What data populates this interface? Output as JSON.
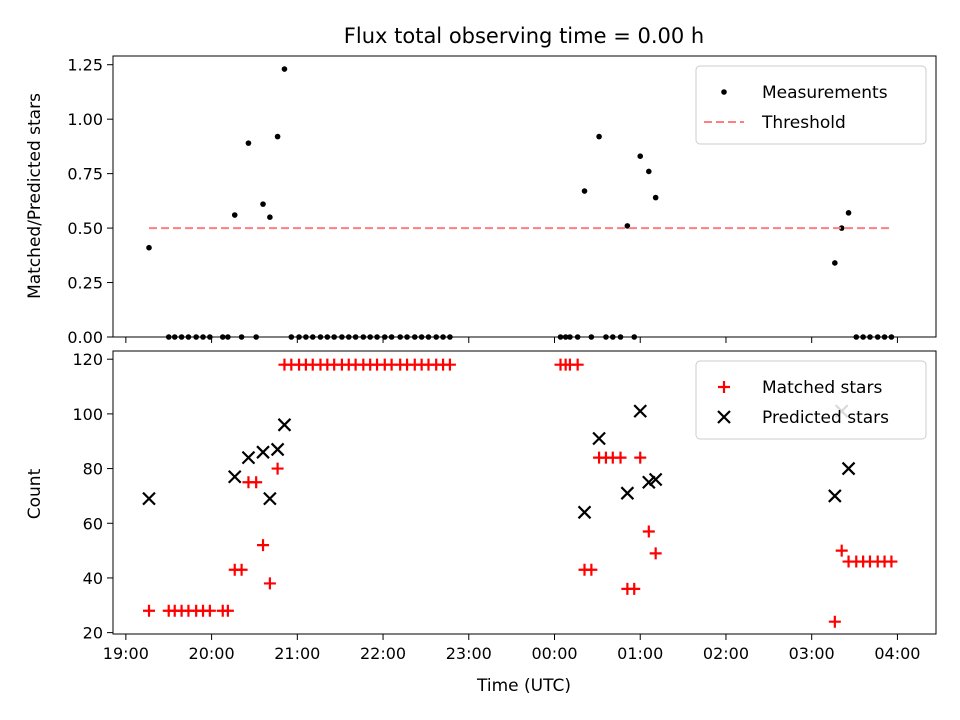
{
  "chart_data": [
    {
      "type": "scatter",
      "title": "Flux total observing time = 0.00 h",
      "xlabel": "",
      "ylabel": "Matched/Predicted stars",
      "xlim": [
        18.85,
        28.45
      ],
      "ylim": [
        0,
        1.29
      ],
      "yticks": [
        0.0,
        0.25,
        0.5,
        0.75,
        1.0,
        1.25
      ],
      "ytick_labels": [
        "0.00",
        "0.25",
        "0.50",
        "0.75",
        "1.00",
        "1.25"
      ],
      "legend_position": "top-right",
      "legend": [
        "Measurements",
        "Threshold"
      ],
      "series": [
        {
          "name": "Measurements",
          "marker": "dot",
          "color": "#000000",
          "x": [
            19.27,
            19.5,
            19.57,
            19.65,
            19.73,
            19.82,
            19.9,
            19.98,
            20.13,
            20.19,
            20.27,
            20.35,
            20.43,
            20.52,
            20.6,
            20.68,
            20.77,
            20.85,
            20.93,
            21.02,
            21.1,
            21.18,
            21.27,
            21.35,
            21.43,
            21.52,
            21.6,
            21.68,
            21.77,
            21.85,
            21.93,
            22.02,
            22.1,
            22.2,
            22.28,
            22.37,
            22.45,
            22.53,
            22.62,
            22.7,
            22.78,
            24.07,
            24.13,
            24.18,
            24.27,
            24.35,
            24.43,
            24.52,
            24.6,
            24.68,
            24.77,
            24.85,
            24.93,
            25.0,
            25.1,
            25.18,
            27.27,
            27.35,
            27.43,
            27.52,
            27.6,
            27.68,
            27.77,
            27.85,
            27.93
          ],
          "y": [
            0.41,
            0.0,
            0.0,
            0.0,
            0.0,
            0.0,
            0.0,
            0.0,
            0.0,
            0.0,
            0.56,
            0.0,
            0.89,
            0.0,
            0.61,
            0.55,
            0.92,
            1.23,
            0.0,
            0.0,
            0.0,
            0.0,
            0.0,
            0.0,
            0.0,
            0.0,
            0.0,
            0.0,
            0.0,
            0.0,
            0.0,
            0.0,
            0.0,
            0.0,
            0.0,
            0.0,
            0.0,
            0.0,
            0.0,
            0.0,
            0.0,
            0.0,
            0.0,
            0.0,
            0.0,
            0.67,
            0.0,
            0.92,
            0.0,
            0.0,
            0.0,
            0.51,
            0.0,
            0.83,
            0.76,
            0.64,
            0.34,
            0.5,
            0.57,
            0.0,
            0.0,
            0.0,
            0.0,
            0.0,
            0.0
          ]
        },
        {
          "name": "Threshold",
          "style": "dashed-line",
          "color": "#ff7f7f",
          "x": [
            19.27,
            27.93
          ],
          "y": [
            0.5,
            0.5
          ]
        }
      ]
    },
    {
      "type": "scatter",
      "title": "",
      "xlabel": "Time (UTC)",
      "ylabel": "Count",
      "xlim": [
        18.85,
        28.45
      ],
      "ylim": [
        19.5,
        123
      ],
      "yticks": [
        20,
        40,
        60,
        80,
        100,
        120
      ],
      "ytick_labels": [
        "20",
        "40",
        "60",
        "80",
        "100",
        "120"
      ],
      "xticks": [
        19,
        20,
        21,
        22,
        23,
        24,
        25,
        26,
        27,
        28
      ],
      "xtick_labels": [
        "19:00",
        "20:00",
        "21:00",
        "22:00",
        "23:00",
        "00:00",
        "01:00",
        "02:00",
        "03:00",
        "04:00"
      ],
      "legend_position": "top-right",
      "legend": [
        "Matched stars",
        "Predicted stars"
      ],
      "series": [
        {
          "name": "Matched stars",
          "marker": "plus",
          "color": "#ff0000",
          "x": [
            19.27,
            19.5,
            19.57,
            19.65,
            19.73,
            19.82,
            19.9,
            19.98,
            20.13,
            20.19,
            20.27,
            20.35,
            20.43,
            20.52,
            20.6,
            20.68,
            20.77,
            20.85,
            20.93,
            21.02,
            21.1,
            21.18,
            21.27,
            21.35,
            21.43,
            21.52,
            21.6,
            21.68,
            21.77,
            21.85,
            21.93,
            22.02,
            22.1,
            22.2,
            22.28,
            22.37,
            22.45,
            22.53,
            22.62,
            22.7,
            22.78,
            24.07,
            24.13,
            24.18,
            24.27,
            24.35,
            24.43,
            24.52,
            24.6,
            24.68,
            24.77,
            24.85,
            24.93,
            25.0,
            25.1,
            25.18,
            27.27,
            27.35,
            27.43,
            27.52,
            27.6,
            27.68,
            27.77,
            27.85,
            27.93
          ],
          "y": [
            28,
            28,
            28,
            28,
            28,
            28,
            28,
            28,
            28,
            28,
            43,
            43,
            75,
            75,
            52,
            38,
            80,
            118,
            118,
            118,
            118,
            118,
            118,
            118,
            118,
            118,
            118,
            118,
            118,
            118,
            118,
            118,
            118,
            118,
            118,
            118,
            118,
            118,
            118,
            118,
            118,
            118,
            118,
            118,
            118,
            43,
            43,
            84,
            84,
            84,
            84,
            36,
            36,
            84,
            57,
            49,
            24,
            50,
            46,
            46,
            46,
            46,
            46,
            46,
            46
          ]
        },
        {
          "name": "Predicted stars",
          "marker": "x",
          "color": "#000000",
          "x": [
            19.27,
            20.27,
            20.43,
            20.6,
            20.68,
            20.77,
            20.85,
            24.35,
            24.52,
            24.85,
            25.0,
            25.1,
            25.18,
            27.27,
            27.35,
            27.43
          ],
          "y": [
            69,
            77,
            84,
            86,
            69,
            87,
            96,
            64,
            91,
            71,
            101,
            75,
            76,
            70,
            101,
            80
          ]
        }
      ]
    }
  ]
}
